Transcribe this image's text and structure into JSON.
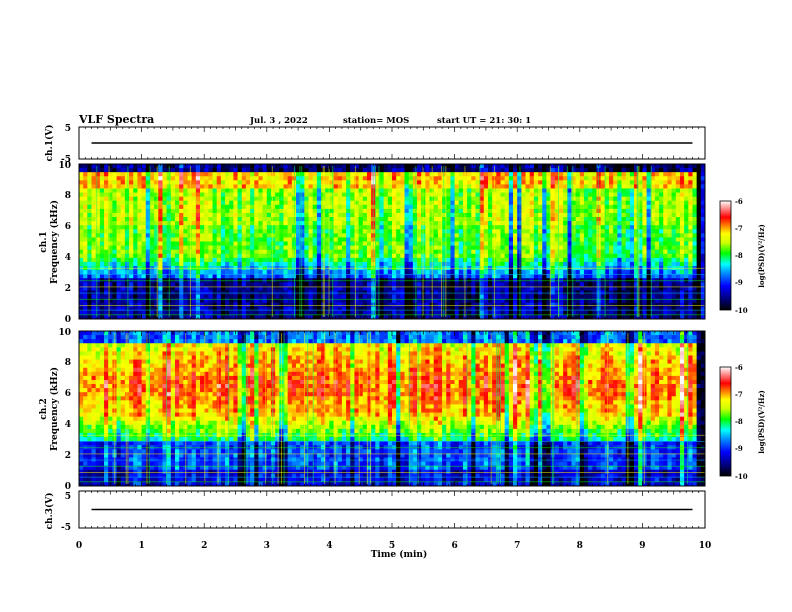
{
  "header": {
    "title": "VLF Spectra",
    "date": "Jul.  3  , 2022",
    "station": "station= MOS",
    "start": "start  UT  =   21: 30: 1"
  },
  "chart_data": [
    {
      "type": "line",
      "ylabel": "ch.1(V)",
      "ylim": [
        -5,
        5
      ],
      "yticks": [
        "5",
        "-5"
      ],
      "x": [
        0,
        10
      ],
      "values": [
        0,
        0
      ]
    },
    {
      "type": "heatmap",
      "ylabel": "ch.1",
      "ylabel2": "Frequency  (kHz)",
      "xlim": [
        0,
        10
      ],
      "ylim": [
        0,
        10
      ],
      "yticks": [
        "0",
        "2",
        "4",
        "6",
        "8",
        "10"
      ],
      "colorbar": {
        "label": "log(PSD)(V²/Hz)",
        "ticks": [
          "-6",
          "-7",
          "-8",
          "-9",
          "-10"
        ],
        "range": [
          -10,
          -6
        ]
      }
    },
    {
      "type": "heatmap",
      "ylabel": "ch.2",
      "ylabel2": "Frequency  (kHz)",
      "xlim": [
        0,
        10
      ],
      "ylim": [
        0,
        10
      ],
      "yticks": [
        "0",
        "2",
        "4",
        "6",
        "8",
        "10"
      ],
      "colorbar": {
        "label": "log(PSD)(V²/Hz)",
        "ticks": [
          "-6",
          "-7",
          "-8",
          "-9",
          "-10"
        ],
        "range": [
          -10,
          -6
        ]
      }
    },
    {
      "type": "line",
      "ylabel": "ch.3(V)",
      "ylim": [
        -5,
        5
      ],
      "yticks": [
        "5",
        "-5"
      ],
      "x": [
        0,
        10
      ],
      "values": [
        0,
        0
      ]
    }
  ],
  "xaxis": {
    "label": "Time  (min)",
    "ticks": [
      "0",
      "1",
      "2",
      "3",
      "4",
      "5",
      "6",
      "7",
      "8",
      "9",
      "10"
    ]
  },
  "colors": {
    "scale": [
      "#000000",
      "#00007a",
      "#0000ff",
      "#0090ff",
      "#00ffff",
      "#00ff00",
      "#d0ff00",
      "#ffff00",
      "#ff0000",
      "#ffffff"
    ]
  }
}
